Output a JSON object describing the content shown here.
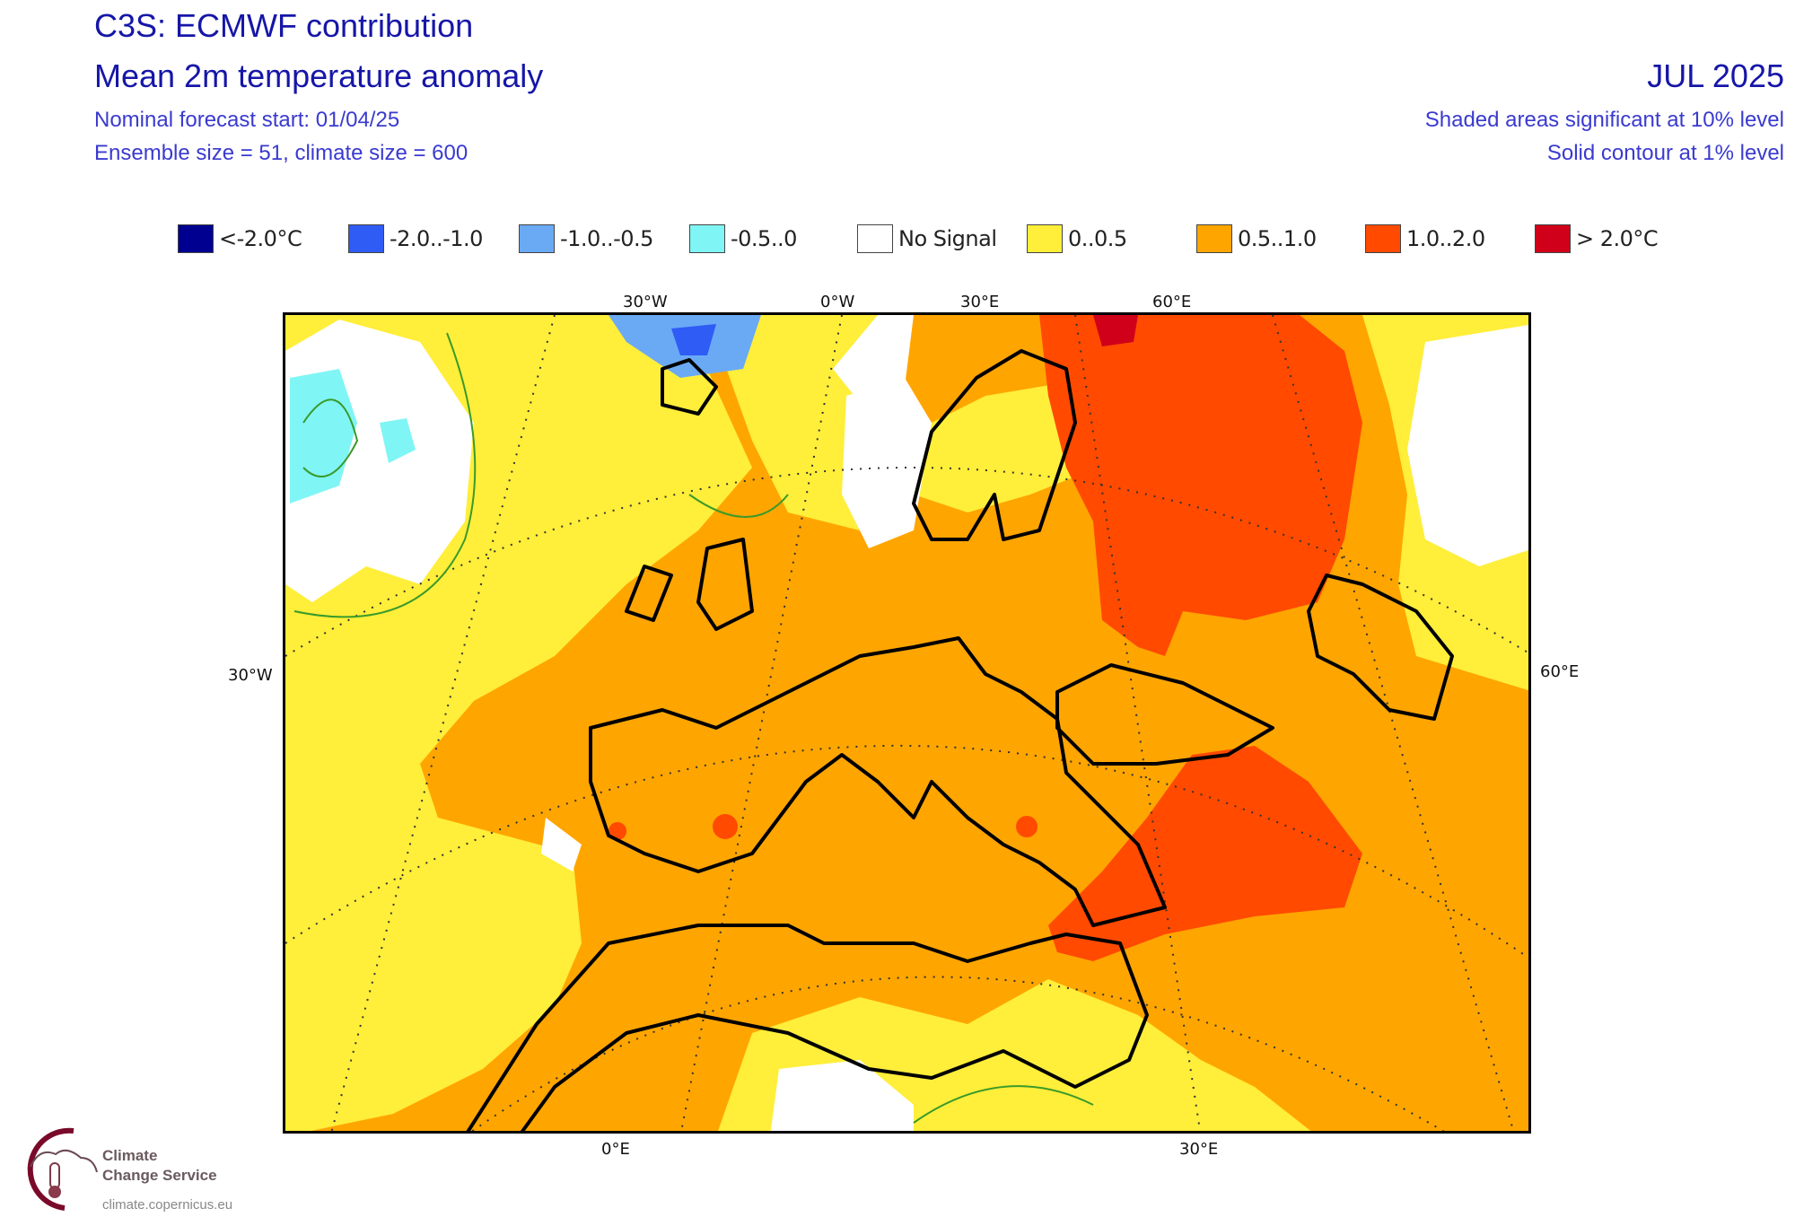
{
  "header": {
    "title": "C3S: ECMWF contribution",
    "variable": "Mean 2m temperature anomaly",
    "forecast_start": "Nominal forecast start: 01/04/25",
    "ensemble_info": "Ensemble size = 51, climate size = 600",
    "valid_month": "JUL 2025",
    "significance_shaded": "Shaded areas significant at 10% level",
    "significance_contour": "Solid contour at 1% level"
  },
  "legend": [
    {
      "label": "<-2.0°C",
      "color": "#000090"
    },
    {
      "label": "-2.0..-1.0",
      "color": "#2f5cf5"
    },
    {
      "label": "-1.0..-0.5",
      "color": "#6aaaf5"
    },
    {
      "label": "-0.5..0",
      "color": "#80f5f5"
    },
    {
      "label": "No Signal",
      "color": "#ffffff"
    },
    {
      "label": "0..0.5",
      "color": "#ffee3a"
    },
    {
      "label": "0.5..1.0",
      "color": "#ffa500"
    },
    {
      "label": "1.0..2.0",
      "color": "#ff4a00"
    },
    {
      "label": "> 2.0°C",
      "color": "#d0001a"
    }
  ],
  "axes": {
    "top": [
      "30°W",
      "0°W",
      "30°E",
      "60°E"
    ],
    "left": "30°W",
    "right": "60°E",
    "bottom": [
      "0°E",
      "30°E"
    ]
  },
  "logo": {
    "line1": "Climate",
    "line2": "Change Service",
    "url": "climate.copernicus.eu"
  }
}
